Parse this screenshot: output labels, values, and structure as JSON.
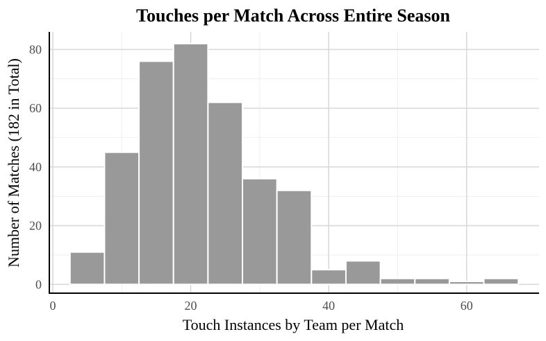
{
  "chart_data": {
    "type": "bar",
    "subtype": "histogram",
    "title": "Touches per Match Across Entire Season",
    "xlabel": "Touch Instances by Team per Match",
    "ylabel": "Number of Matches (182 in Total)",
    "bin_width": 5,
    "bins": [
      {
        "start": 2.5,
        "end": 7.5,
        "count": 11
      },
      {
        "start": 7.5,
        "end": 12.5,
        "count": 45
      },
      {
        "start": 12.5,
        "end": 17.5,
        "count": 76
      },
      {
        "start": 17.5,
        "end": 22.5,
        "count": 82
      },
      {
        "start": 22.5,
        "end": 27.5,
        "count": 62
      },
      {
        "start": 27.5,
        "end": 32.5,
        "count": 36
      },
      {
        "start": 32.5,
        "end": 37.5,
        "count": 32
      },
      {
        "start": 37.5,
        "end": 42.5,
        "count": 5
      },
      {
        "start": 42.5,
        "end": 47.5,
        "count": 8
      },
      {
        "start": 47.5,
        "end": 52.5,
        "count": 2
      },
      {
        "start": 52.5,
        "end": 57.5,
        "count": 2
      },
      {
        "start": 57.5,
        "end": 62.5,
        "count": 1
      },
      {
        "start": 62.5,
        "end": 67.5,
        "count": 2
      }
    ],
    "xlim": [
      -0.5,
      70.5
    ],
    "ylim": [
      -3,
      86
    ],
    "xticks": [
      0,
      20,
      40,
      60
    ],
    "yticks": [
      0,
      20,
      40,
      60,
      80
    ],
    "grid": true,
    "bar_color": "#999999",
    "bar_edge_color": "#ffffff"
  }
}
